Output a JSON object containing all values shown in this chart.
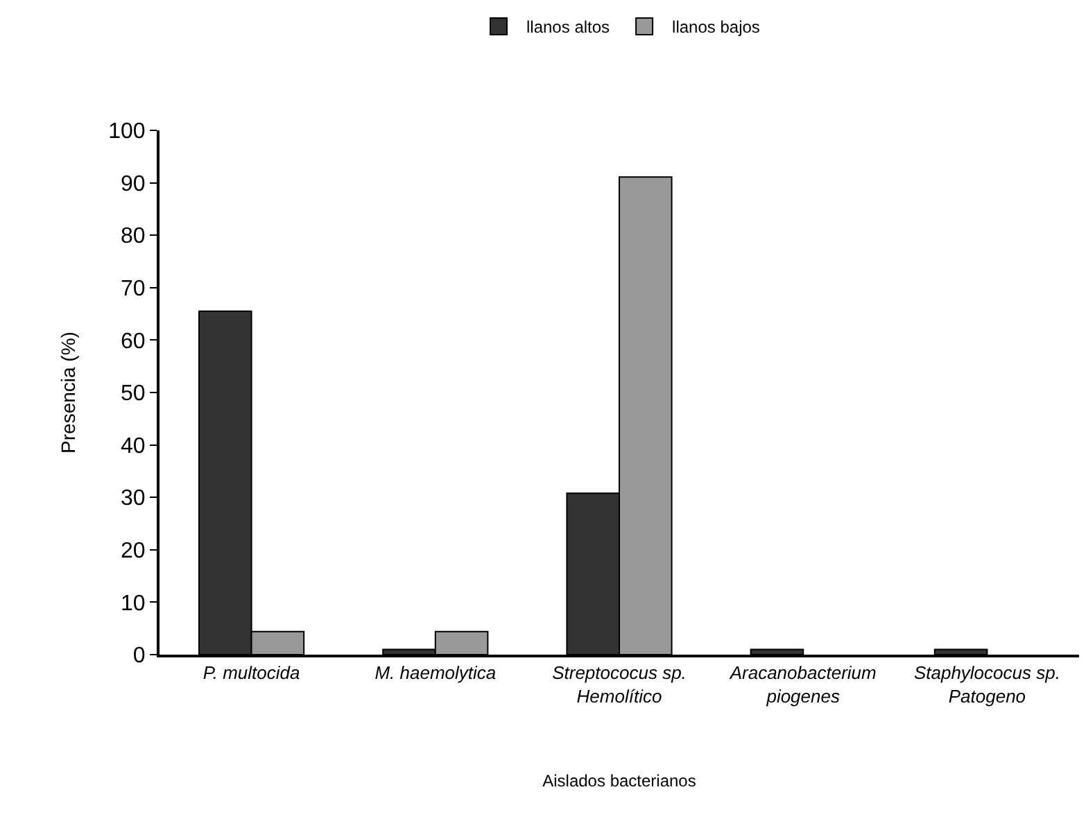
{
  "chart_data": {
    "type": "bar",
    "xlabel": "Aislados bacterianos",
    "ylabel": "Presencia (%)",
    "categories": [
      "P. multocida",
      "M. haemolytica",
      "Streptococus sp.\nHemolítico",
      "Aracanobacterium\npiogenes",
      "Staphylococus sp.\nPatogeno"
    ],
    "series": [
      {
        "name": "llanos altos",
        "color": "#333333",
        "values": [
          65.5,
          1,
          30.8,
          1,
          1
        ]
      },
      {
        "name": "llanos bajos",
        "color": "#999999",
        "values": [
          4.4,
          4.4,
          91.1,
          0,
          0
        ]
      }
    ],
    "ylim": [
      0,
      100
    ],
    "yticks": [
      0,
      10,
      20,
      30,
      40,
      50,
      60,
      70,
      80,
      90,
      100
    ],
    "grid": false,
    "legend": "top"
  }
}
